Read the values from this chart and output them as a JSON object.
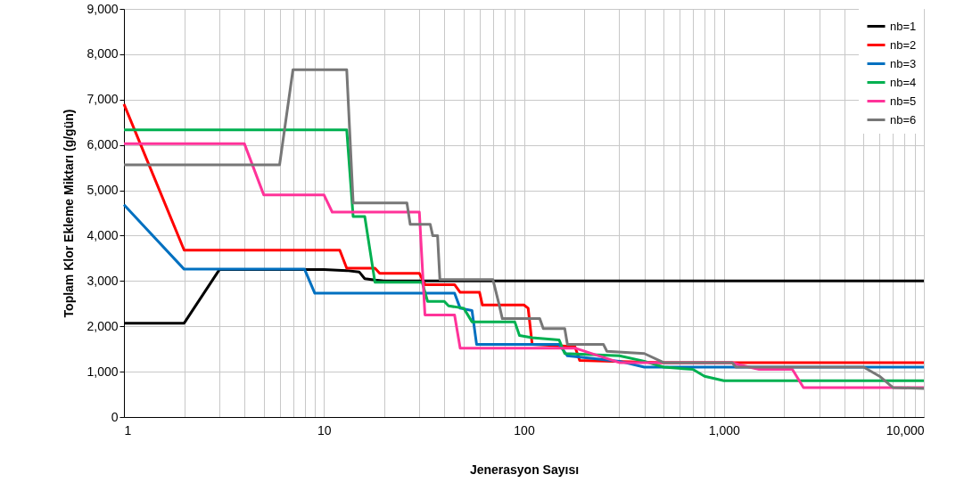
{
  "chart_data": {
    "type": "line",
    "xlabel": "Jenerasyon Sayısı",
    "ylabel": "Toplam Klor Ekleme Miktarı (g/gün)",
    "log": "x",
    "grid": true,
    "legend": "top right",
    "marker": "none",
    "line_style": "solid",
    "xlim": [
      1,
      10000
    ],
    "xticks": [
      1,
      {
        "value": 2,
        "label": null
      },
      {
        "value": 3,
        "label": null
      },
      {
        "value": 4,
        "label": null
      },
      {
        "value": 5,
        "label": null
      },
      {
        "value": 6,
        "label": null
      },
      {
        "value": 7,
        "label": null
      },
      {
        "value": 8,
        "label": null
      },
      {
        "value": 9,
        "label": null
      },
      10,
      {
        "value": 20,
        "label": null
      },
      {
        "value": 30,
        "label": null
      },
      {
        "value": 40,
        "label": null
      },
      {
        "value": 50,
        "label": null
      },
      {
        "value": 60,
        "label": null
      },
      {
        "value": 70,
        "label": null
      },
      {
        "value": 80,
        "label": null
      },
      {
        "value": 90,
        "label": null
      },
      100,
      {
        "value": 200,
        "label": null
      },
      {
        "value": 300,
        "label": null
      },
      {
        "value": 400,
        "label": null
      },
      {
        "value": 500,
        "label": null
      },
      {
        "value": 600,
        "label": null
      },
      {
        "value": 700,
        "label": null
      },
      {
        "value": 800,
        "label": null
      },
      {
        "value": 900,
        "label": null
      },
      {
        "value": 1000,
        "label": "1,000"
      },
      {
        "value": 2000,
        "label": null
      },
      {
        "value": 3000,
        "label": null
      },
      {
        "value": 4000,
        "label": null
      },
      {
        "value": 5000,
        "label": null
      },
      {
        "value": 6000,
        "label": null
      },
      {
        "value": 7000,
        "label": null
      },
      {
        "value": 8000,
        "label": null
      },
      {
        "value": 9000,
        "label": null
      },
      {
        "value": 10000,
        "label": "10,000"
      }
    ],
    "ylim": [
      0,
      9000
    ],
    "yticks": [
      0,
      {
        "value": 1000,
        "label": "1,000"
      },
      {
        "value": 2000,
        "label": "2,000"
      },
      {
        "value": 3000,
        "label": "3,000"
      },
      {
        "value": 4000,
        "label": "4,000"
      },
      {
        "value": 5000,
        "label": "5,000"
      },
      {
        "value": 6000,
        "label": "6,000"
      },
      {
        "value": 7000,
        "label": "7,000"
      },
      {
        "value": 8000,
        "label": "8,000"
      },
      {
        "value": 9000,
        "label": "9,000"
      }
    ],
    "series": [
      {
        "name": "nb=1",
        "color": "#000000",
        "x": [
          1,
          2,
          3,
          10,
          13,
          15,
          16,
          18,
          20,
          10000
        ],
        "values": [
          2070,
          2070,
          3250,
          3250,
          3230,
          3200,
          3050,
          3020,
          3000,
          3000
        ]
      },
      {
        "name": "nb=2",
        "color": "#ff0000",
        "x": [
          1,
          2,
          12,
          13,
          18,
          19,
          30,
          32,
          45,
          48,
          60,
          62,
          100,
          105,
          110,
          180,
          190,
          500,
          10000
        ],
        "values": [
          6900,
          3680,
          3680,
          3280,
          3280,
          3170,
          3170,
          2920,
          2920,
          2750,
          2750,
          2470,
          2470,
          2400,
          1600,
          1550,
          1250,
          1200,
          1200
        ]
      },
      {
        "name": "nb=3",
        "color": "#0070c0",
        "x": [
          1,
          2,
          8,
          9,
          45,
          48,
          55,
          58,
          150,
          165,
          300,
          400,
          10000
        ],
        "values": [
          4680,
          3260,
          3260,
          2730,
          2730,
          2400,
          2350,
          1600,
          1600,
          1350,
          1230,
          1100,
          1100
        ]
      },
      {
        "name": "nb=4",
        "color": "#00b050",
        "x": [
          1,
          13,
          14,
          16,
          18,
          31,
          33,
          40,
          42,
          50,
          55,
          90,
          95,
          110,
          150,
          160,
          300,
          400,
          500,
          700,
          800,
          1000,
          10000
        ],
        "values": [
          6330,
          6330,
          4420,
          4420,
          2970,
          2970,
          2550,
          2550,
          2450,
          2400,
          2100,
          2100,
          1800,
          1750,
          1700,
          1400,
          1350,
          1230,
          1100,
          1050,
          900,
          800,
          800
        ]
      },
      {
        "name": "nb=5",
        "color": "#ff3399",
        "x": [
          1,
          4,
          5,
          10,
          11,
          30,
          32,
          45,
          48,
          180,
          300,
          1100,
          1200,
          1500,
          2200,
          2500,
          10000
        ],
        "values": [
          6030,
          6030,
          4900,
          4900,
          4520,
          4520,
          2250,
          2250,
          1520,
          1520,
          1200,
          1200,
          1150,
          1050,
          1050,
          650,
          650
        ]
      },
      {
        "name": "nb=6",
        "color": "#777777",
        "x": [
          1,
          6,
          7,
          13,
          14,
          26,
          27,
          34,
          35,
          37,
          38,
          70,
          75,
          78,
          120,
          125,
          160,
          165,
          250,
          260,
          400,
          500,
          1100,
          1150,
          5000,
          6000,
          7000,
          10000
        ],
        "values": [
          5560,
          5560,
          7660,
          7660,
          4720,
          4720,
          4250,
          4250,
          4000,
          4000,
          3030,
          3030,
          2500,
          2170,
          2170,
          1950,
          1950,
          1600,
          1600,
          1450,
          1400,
          1200,
          1200,
          1100,
          1100,
          900,
          650,
          630
        ]
      }
    ]
  }
}
